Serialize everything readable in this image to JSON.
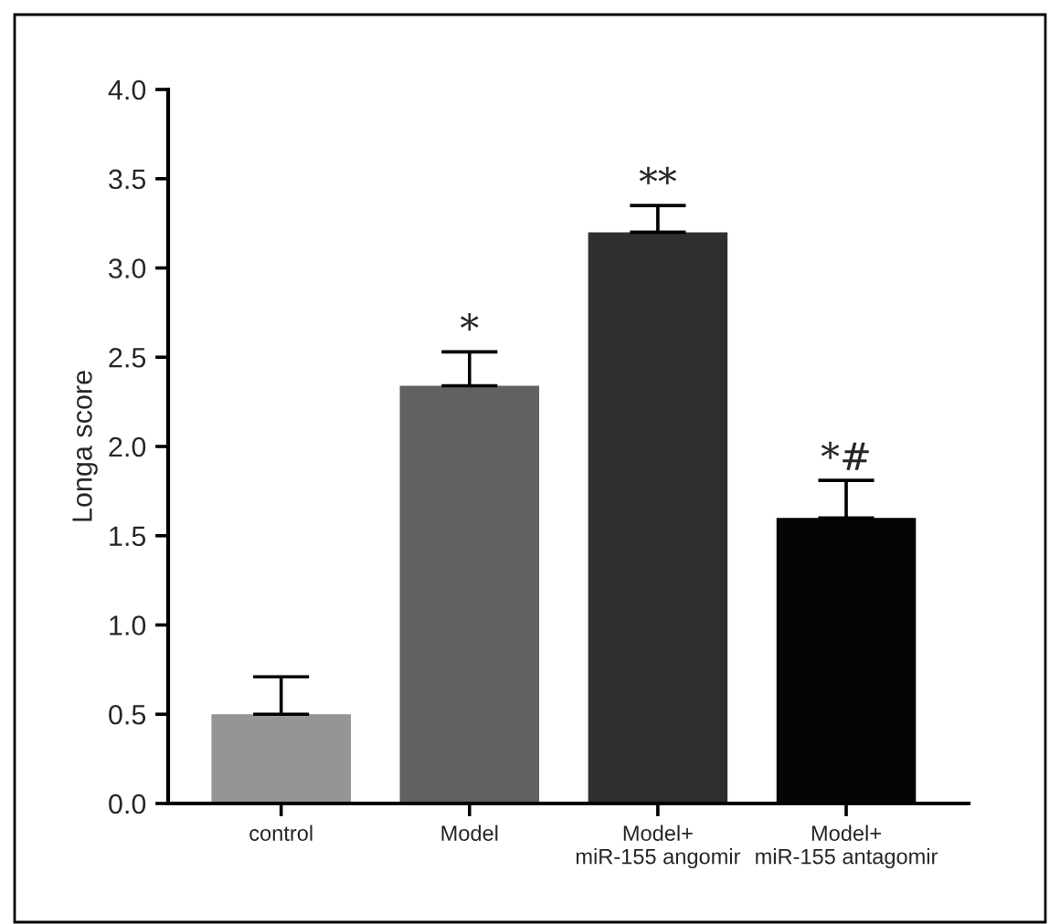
{
  "chart_data": {
    "type": "bar",
    "ylabel": "Longa score",
    "categories": [
      "control",
      "Model",
      "Model+\nmiR-155 angomir",
      "Model+\nmiR-155 antagomir"
    ],
    "values": [
      0.5,
      2.34,
      3.2,
      1.6
    ],
    "errors": [
      [
        0.5,
        0.71
      ],
      [
        2.34,
        2.53
      ],
      [
        3.2,
        3.35
      ],
      [
        1.6,
        1.81
      ]
    ],
    "colors": [
      "#939596",
      "#5f6163",
      "#2d2f31",
      "#050505"
    ],
    "ylim": [
      0,
      4
    ],
    "yticks": [
      {
        "value": 0,
        "label": "0.0"
      },
      0.5,
      {
        "value": 1,
        "label": "1.0"
      },
      1.5,
      {
        "value": 2,
        "label": "2.0"
      },
      2.5,
      {
        "value": 3,
        "label": "3.0"
      },
      3.5,
      {
        "value": 4,
        "label": "4.0"
      }
    ],
    "annotations": [
      {
        "text": "*",
        "x": "Model",
        "y": 2.53
      },
      {
        "text": "**",
        "x": "Model+\nmiR-155 angomir",
        "y": 3.35
      },
      {
        "text": "*#",
        "x": "Model+\nmiR-155 antagomir",
        "y": 1.81
      }
    ],
    "grid": false
  }
}
